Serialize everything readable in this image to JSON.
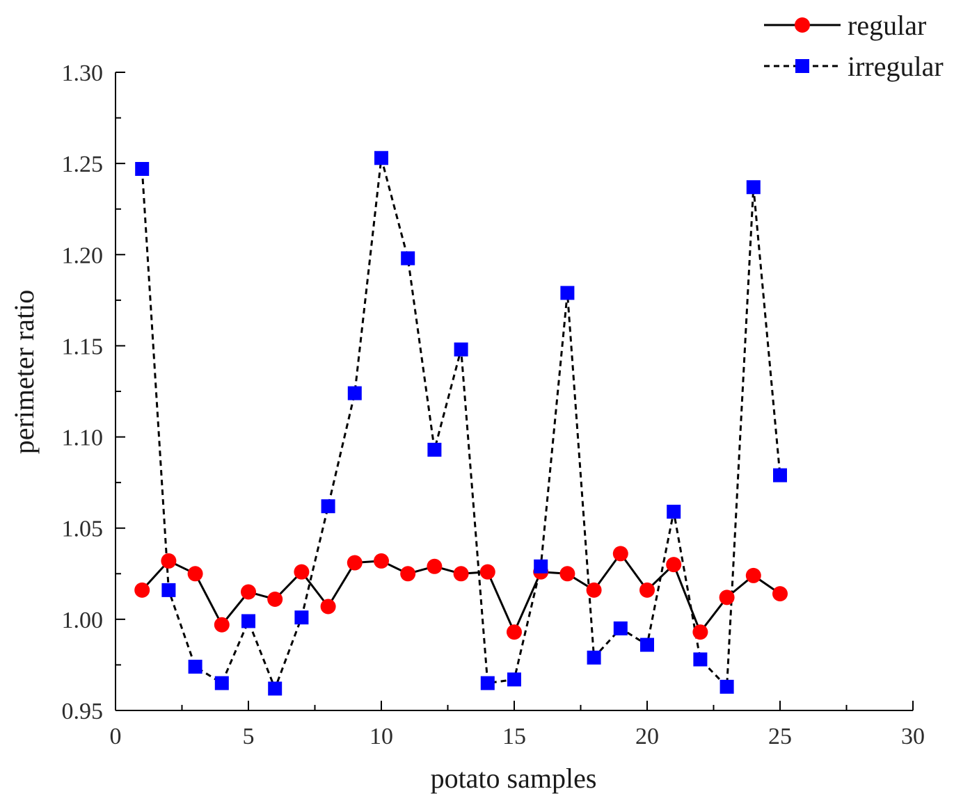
{
  "chart_data": {
    "type": "line",
    "title": "",
    "xlabel": "potato samples",
    "ylabel": "perimeter ratio",
    "xlim": [
      0,
      30
    ],
    "ylim": [
      0.95,
      1.3
    ],
    "xticks": [
      "0",
      "5",
      "10",
      "15",
      "20",
      "25",
      "30"
    ],
    "yticks": [
      "0.95",
      "1.00",
      "1.05",
      "1.10",
      "1.15",
      "1.20",
      "1.25",
      "1.30"
    ],
    "x": [
      1,
      2,
      3,
      4,
      5,
      6,
      7,
      8,
      9,
      10,
      11,
      12,
      13,
      14,
      15,
      16,
      17,
      18,
      19,
      20,
      21,
      22,
      23,
      24,
      25
    ],
    "legend_position": "top-right",
    "grid": false,
    "series": [
      {
        "name": "regular",
        "color": "#ff0000",
        "line_color": "#000000",
        "line_style": "solid",
        "marker": "circle",
        "values": [
          1.016,
          1.032,
          1.025,
          0.997,
          1.015,
          1.011,
          1.026,
          1.007,
          1.031,
          1.032,
          1.025,
          1.029,
          1.025,
          1.026,
          0.993,
          1.026,
          1.025,
          1.016,
          1.036,
          1.016,
          1.03,
          0.993,
          1.012,
          1.024,
          1.014
        ]
      },
      {
        "name": "irregular",
        "color": "#0000ff",
        "line_color": "#000000",
        "line_style": "dashed",
        "marker": "square",
        "values": [
          1.247,
          1.016,
          0.974,
          0.965,
          0.999,
          0.962,
          1.001,
          1.062,
          1.124,
          1.253,
          1.198,
          1.093,
          1.148,
          0.965,
          0.967,
          1.029,
          1.179,
          0.979,
          0.995,
          0.986,
          1.059,
          0.978,
          0.963,
          1.237,
          1.079
        ]
      }
    ]
  }
}
